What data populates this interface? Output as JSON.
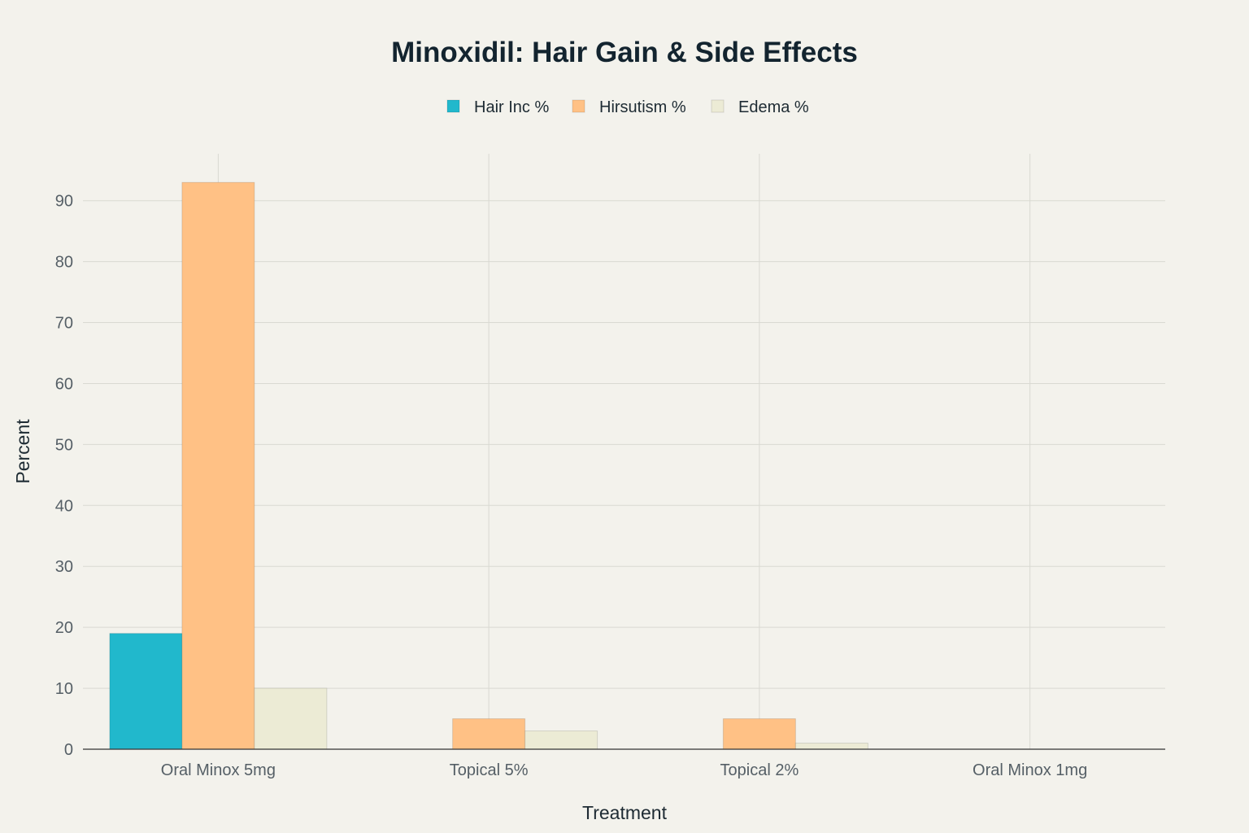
{
  "chart_data": {
    "type": "bar",
    "title": "Minoxidil: Hair Gain & Side Effects",
    "xlabel": "Treatment",
    "ylabel": "Percent",
    "categories": [
      "Oral Minox 5mg",
      "Topical 5%",
      "Topical 2%",
      "Oral Minox 1mg"
    ],
    "series": [
      {
        "name": "Hair Inc %",
        "color": "#21b8cc",
        "values": [
          19,
          0,
          0,
          0
        ]
      },
      {
        "name": "Hirsutism %",
        "color": "#ffc185",
        "values": [
          93,
          5,
          5,
          0
        ]
      },
      {
        "name": "Edema %",
        "color": "#ecebd5",
        "values": [
          10,
          3,
          1,
          0
        ]
      }
    ],
    "ylim": [
      0,
      97.7
    ],
    "yticks": [
      0,
      10,
      20,
      30,
      40,
      50,
      60,
      70,
      80,
      90
    ],
    "grid": true,
    "legend_position": "top-center"
  },
  "colors": {
    "background": "#f3f2ec",
    "grid": "#d9d9d2",
    "axis": "#333333"
  }
}
